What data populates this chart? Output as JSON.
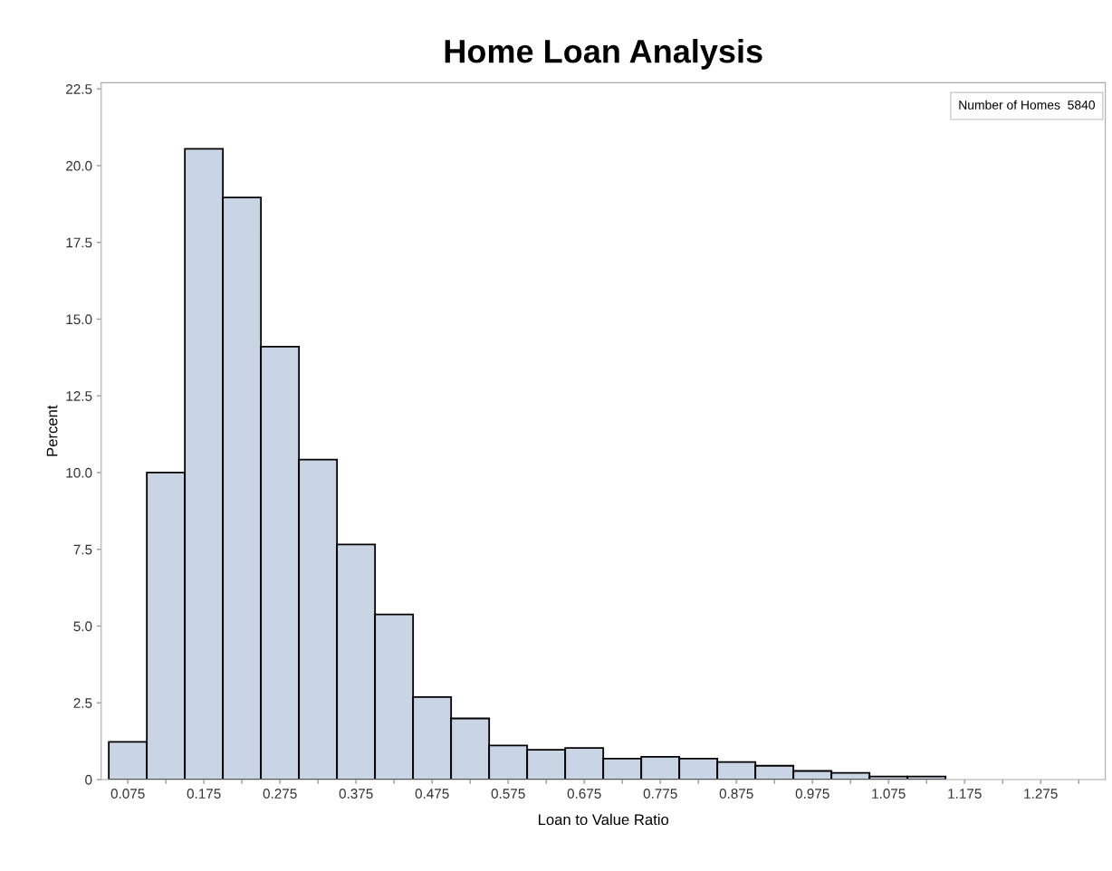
{
  "chart_data": {
    "type": "histogram",
    "title": "Home Loan Analysis",
    "xlabel": "Loan to Value Ratio",
    "ylabel": "Percent",
    "bins": [
      0.05,
      0.1,
      0.15,
      0.2,
      0.25,
      0.3,
      0.35,
      0.4,
      0.45,
      0.5,
      0.55,
      0.6,
      0.65,
      0.7,
      0.75,
      0.8,
      0.85,
      0.9,
      0.95,
      1.0,
      1.05,
      1.1,
      1.15
    ],
    "values": [
      1.23,
      10.0,
      20.55,
      18.96,
      14.1,
      10.42,
      7.66,
      5.38,
      2.69,
      1.99,
      1.11,
      0.97,
      1.03,
      0.68,
      0.74,
      0.68,
      0.57,
      0.45,
      0.28,
      0.22,
      0.1,
      0.1
    ],
    "color": "#c9d4e4",
    "xlim": [
      0.04,
      1.36
    ],
    "xticks": [
      0.075,
      {
        "value": 0.125,
        "label": null
      },
      0.175,
      {
        "value": 0.225,
        "label": null
      },
      0.275,
      {
        "value": 0.325,
        "label": null
      },
      0.375,
      {
        "value": 0.425,
        "label": null
      },
      0.475,
      {
        "value": 0.525,
        "label": null
      },
      0.575,
      {
        "value": 0.625,
        "label": null
      },
      0.675,
      {
        "value": 0.725,
        "label": null
      },
      0.775,
      {
        "value": 0.825,
        "label": null
      },
      0.875,
      {
        "value": 0.925,
        "label": null
      },
      0.975,
      {
        "value": 1.025,
        "label": null
      },
      1.075,
      {
        "value": 1.125,
        "label": null
      },
      1.175,
      {
        "value": 1.225,
        "label": null
      },
      1.275,
      {
        "value": 1.325,
        "label": null
      }
    ],
    "ylim": [
      0,
      22.7
    ],
    "yticks": [
      0,
      2.5,
      {
        "value": 5,
        "label": "5.0"
      },
      7.5,
      {
        "value": 10,
        "label": "10.0"
      },
      12.5,
      {
        "value": 15,
        "label": "15.0"
      },
      17.5,
      {
        "value": 20,
        "label": "20.0"
      },
      22.5
    ],
    "annotations": [
      "Number of Homes  5840"
    ],
    "grid": false
  }
}
